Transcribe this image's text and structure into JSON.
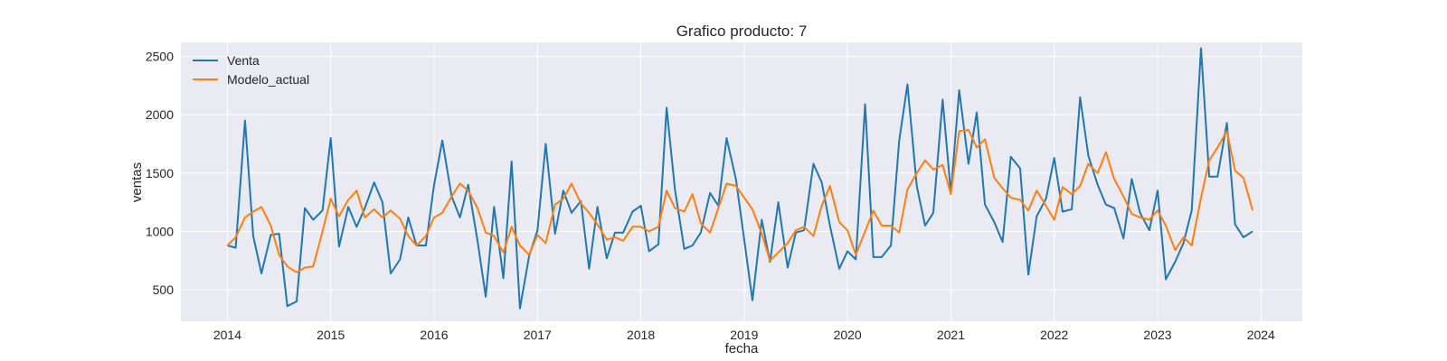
{
  "chart_data": {
    "type": "line",
    "title": "Grafico producto: 7",
    "xlabel": "fecha",
    "ylabel": "ventas",
    "xlim": [
      2013.55,
      2024.4
    ],
    "ylim": [
      230,
      2620
    ],
    "x_ticks": [
      "2014",
      "2015",
      "2016",
      "2017",
      "2018",
      "2019",
      "2020",
      "2021",
      "2022",
      "2023",
      "2024"
    ],
    "y_ticks": [
      "500",
      "1000",
      "1500",
      "2000",
      "2500"
    ],
    "grid": true,
    "legend_position": "top-left",
    "background": "#eaeaf2",
    "series": [
      {
        "name": "Venta",
        "color": "#1f77b4",
        "x": [
          2014.0,
          2014.08,
          2014.17,
          2014.25,
          2014.33,
          2014.42,
          2014.5,
          2014.58,
          2014.67,
          2014.75,
          2014.83,
          2014.92,
          2015.0,
          2015.08,
          2015.17,
          2015.25,
          2015.33,
          2015.42,
          2015.5,
          2015.58,
          2015.67,
          2015.75,
          2015.83,
          2015.92,
          2016.0,
          2016.08,
          2016.17,
          2016.25,
          2016.33,
          2016.42,
          2016.5,
          2016.58,
          2016.67,
          2016.75,
          2016.83,
          2016.92,
          2017.0,
          2017.08,
          2017.17,
          2017.25,
          2017.33,
          2017.42,
          2017.5,
          2017.58,
          2017.67,
          2017.75,
          2017.83,
          2017.92,
          2018.0,
          2018.08,
          2018.17,
          2018.25,
          2018.33,
          2018.42,
          2018.5,
          2018.58,
          2018.67,
          2018.75,
          2018.83,
          2018.92,
          2019.0,
          2019.08,
          2019.17,
          2019.25,
          2019.33,
          2019.42,
          2019.5,
          2019.58,
          2019.67,
          2019.75,
          2019.83,
          2019.92,
          2020.0,
          2020.08,
          2020.17,
          2020.25,
          2020.33,
          2020.42,
          2020.5,
          2020.58,
          2020.67,
          2020.75,
          2020.83,
          2020.92,
          2021.0,
          2021.08,
          2021.17,
          2021.25,
          2021.33,
          2021.42,
          2021.5,
          2021.58,
          2021.67,
          2021.75,
          2021.83,
          2021.92,
          2022.0,
          2022.08,
          2022.17,
          2022.25,
          2022.33,
          2022.42,
          2022.5,
          2022.58,
          2022.67,
          2022.75,
          2022.83,
          2022.92,
          2023.0,
          2023.08,
          2023.17,
          2023.25,
          2023.33,
          2023.42,
          2023.5,
          2023.58,
          2023.67,
          2023.75,
          2023.83,
          2023.92
        ],
        "values": [
          880,
          860,
          1950,
          960,
          640,
          970,
          980,
          360,
          400,
          1200,
          1100,
          1180,
          1800,
          870,
          1210,
          1040,
          1200,
          1420,
          1250,
          640,
          760,
          1120,
          880,
          880,
          1400,
          1780,
          1300,
          1120,
          1400,
          920,
          440,
          1210,
          600,
          1600,
          340,
          790,
          1010,
          1750,
          980,
          1350,
          1160,
          1260,
          680,
          1210,
          770,
          990,
          990,
          1170,
          1220,
          830,
          890,
          2060,
          1360,
          850,
          880,
          990,
          1330,
          1220,
          1800,
          1450,
          930,
          410,
          1100,
          740,
          1250,
          690,
          990,
          1010,
          1580,
          1420,
          1050,
          680,
          830,
          760,
          2090,
          780,
          780,
          880,
          1780,
          2260,
          1390,
          1050,
          1160,
          2130,
          1330,
          2210,
          1580,
          2020,
          1230,
          1080,
          910,
          1640,
          1540,
          630,
          1130,
          1280,
          1630,
          1170,
          1190,
          2150,
          1650,
          1400,
          1230,
          1200,
          940,
          1450,
          1160,
          1010,
          1350,
          590,
          740,
          900,
          1180,
          2570,
          1470,
          1470,
          1930,
          1060,
          950,
          1000
        ]
      },
      {
        "name": "Modelo_actual",
        "color": "#ff7f0e",
        "x": [
          2014.0,
          2014.08,
          2014.17,
          2014.25,
          2014.33,
          2014.42,
          2014.5,
          2014.58,
          2014.67,
          2014.75,
          2014.83,
          2014.92,
          2015.0,
          2015.08,
          2015.17,
          2015.25,
          2015.33,
          2015.42,
          2015.5,
          2015.58,
          2015.67,
          2015.75,
          2015.83,
          2015.92,
          2016.0,
          2016.08,
          2016.17,
          2016.25,
          2016.33,
          2016.42,
          2016.5,
          2016.58,
          2016.67,
          2016.75,
          2016.83,
          2016.92,
          2017.0,
          2017.08,
          2017.17,
          2017.25,
          2017.33,
          2017.42,
          2017.5,
          2017.58,
          2017.67,
          2017.75,
          2017.83,
          2017.92,
          2018.0,
          2018.08,
          2018.17,
          2018.25,
          2018.33,
          2018.42,
          2018.5,
          2018.58,
          2018.67,
          2018.75,
          2018.83,
          2018.92,
          2019.0,
          2019.08,
          2019.17,
          2019.25,
          2019.33,
          2019.42,
          2019.5,
          2019.58,
          2019.67,
          2019.75,
          2019.83,
          2019.92,
          2020.0,
          2020.08,
          2020.17,
          2020.25,
          2020.33,
          2020.42,
          2020.5,
          2020.58,
          2020.67,
          2020.75,
          2020.83,
          2020.92,
          2021.0,
          2021.08,
          2021.17,
          2021.25,
          2021.33,
          2021.42,
          2021.5,
          2021.58,
          2021.67,
          2021.75,
          2021.83,
          2021.92,
          2022.0,
          2022.08,
          2022.17,
          2022.25,
          2022.33,
          2022.42,
          2022.5,
          2022.58,
          2022.67,
          2022.75,
          2022.83,
          2022.92,
          2023.0,
          2023.08,
          2023.17,
          2023.25,
          2023.33,
          2023.42,
          2023.5,
          2023.58,
          2023.67,
          2023.75,
          2023.83,
          2023.92
        ],
        "values": [
          880,
          950,
          1120,
          1170,
          1210,
          1050,
          800,
          700,
          650,
          690,
          700,
          1000,
          1280,
          1130,
          1270,
          1350,
          1120,
          1190,
          1120,
          1180,
          1110,
          960,
          880,
          960,
          1120,
          1160,
          1300,
          1410,
          1350,
          1200,
          990,
          960,
          820,
          1040,
          880,
          800,
          970,
          900,
          1230,
          1280,
          1410,
          1240,
          1160,
          1060,
          930,
          950,
          920,
          1040,
          1040,
          1000,
          1040,
          1350,
          1200,
          1170,
          1320,
          1070,
          990,
          1200,
          1410,
          1390,
          1290,
          1190,
          980,
          750,
          820,
          900,
          1010,
          1040,
          960,
          1220,
          1390,
          1080,
          1010,
          800,
          1000,
          1180,
          1050,
          1050,
          990,
          1360,
          1500,
          1610,
          1530,
          1570,
          1320,
          1860,
          1870,
          1720,
          1790,
          1460,
          1370,
          1290,
          1270,
          1180,
          1350,
          1220,
          1100,
          1380,
          1320,
          1390,
          1580,
          1500,
          1680,
          1450,
          1300,
          1150,
          1120,
          1100,
          1180,
          1050,
          840,
          950,
          880,
          1290,
          1610,
          1720,
          1860,
          1520,
          1460,
          1180
        ]
      }
    ]
  }
}
